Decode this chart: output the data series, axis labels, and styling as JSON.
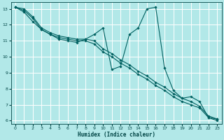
{
  "xlabel": "Humidex (Indice chaleur)",
  "bg_color": "#b2e8e8",
  "grid_color": "#ffffff",
  "line_color": "#006060",
  "xlim": [
    -0.5,
    23.5
  ],
  "ylim": [
    5.8,
    13.4
  ],
  "xticks": [
    0,
    1,
    2,
    3,
    4,
    5,
    6,
    7,
    8,
    9,
    10,
    11,
    12,
    13,
    14,
    15,
    16,
    17,
    18,
    19,
    20,
    21,
    22,
    23
  ],
  "yticks": [
    6,
    7,
    8,
    9,
    10,
    11,
    12,
    13
  ],
  "series": [
    {
      "x": [
        0,
        1,
        2,
        3,
        4,
        5,
        6,
        7,
        8,
        9,
        10,
        11,
        12,
        13,
        14,
        15,
        16,
        17,
        18,
        19,
        20,
        21,
        22,
        23
      ],
      "y": [
        13.1,
        13.0,
        12.5,
        11.8,
        11.5,
        11.3,
        11.2,
        11.1,
        11.1,
        11.0,
        10.5,
        10.2,
        9.8,
        9.5,
        9.1,
        8.8,
        8.4,
        8.1,
        7.7,
        7.4,
        7.2,
        6.9,
        6.3,
        6.1
      ]
    },
    {
      "x": [
        0,
        1,
        2,
        3,
        4,
        5,
        6,
        7,
        8,
        9,
        10,
        11,
        12,
        13,
        14,
        15,
        16,
        17,
        18,
        19,
        20,
        21,
        22,
        23
      ],
      "y": [
        13.1,
        12.9,
        12.4,
        11.7,
        11.4,
        11.2,
        11.1,
        11.0,
        11.0,
        10.8,
        10.3,
        10.0,
        9.6,
        9.3,
        8.9,
        8.6,
        8.2,
        7.9,
        7.5,
        7.2,
        7.0,
        6.8,
        6.2,
        6.0
      ]
    },
    {
      "x": [
        0,
        1,
        2,
        3,
        4,
        5,
        6,
        7,
        8,
        9,
        10,
        11,
        12,
        13,
        14,
        15,
        16,
        17,
        18,
        19,
        20,
        21,
        22,
        23
      ],
      "y": [
        13.1,
        12.8,
        12.2,
        11.7,
        11.4,
        11.1,
        11.0,
        10.9,
        11.1,
        11.4,
        11.8,
        9.2,
        9.4,
        11.4,
        11.8,
        13.0,
        13.1,
        9.3,
        7.9,
        7.4,
        7.5,
        7.2,
        6.2,
        6.1
      ]
    }
  ]
}
